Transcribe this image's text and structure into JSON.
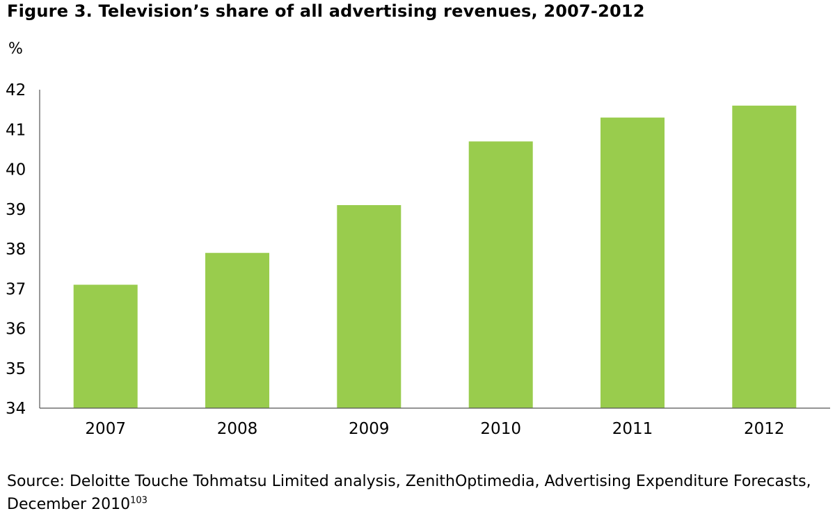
{
  "chart_data": {
    "type": "bar",
    "title": "Figure 3. Television’s share of all advertising revenues, 2007-2012",
    "ylabel": "%",
    "xlabel": "",
    "categories": [
      "2007",
      "2008",
      "2009",
      "2010",
      "2011",
      "2012"
    ],
    "values": [
      37.1,
      37.9,
      39.1,
      40.7,
      41.3,
      41.6
    ],
    "ylim": [
      34,
      42
    ],
    "yticks": [
      "34",
      "35",
      "36",
      "37",
      "38",
      "39",
      "40",
      "41",
      "42"
    ],
    "grid": false,
    "legend": "none",
    "bar_color": "#99cc4d",
    "axis_color": "#555555"
  },
  "source": {
    "text": "Source: Deloitte Touche Tohmatsu Limited analysis, ZenithOptimedia, Advertising Expenditure Forecasts, December 2010",
    "footnote": "103"
  }
}
